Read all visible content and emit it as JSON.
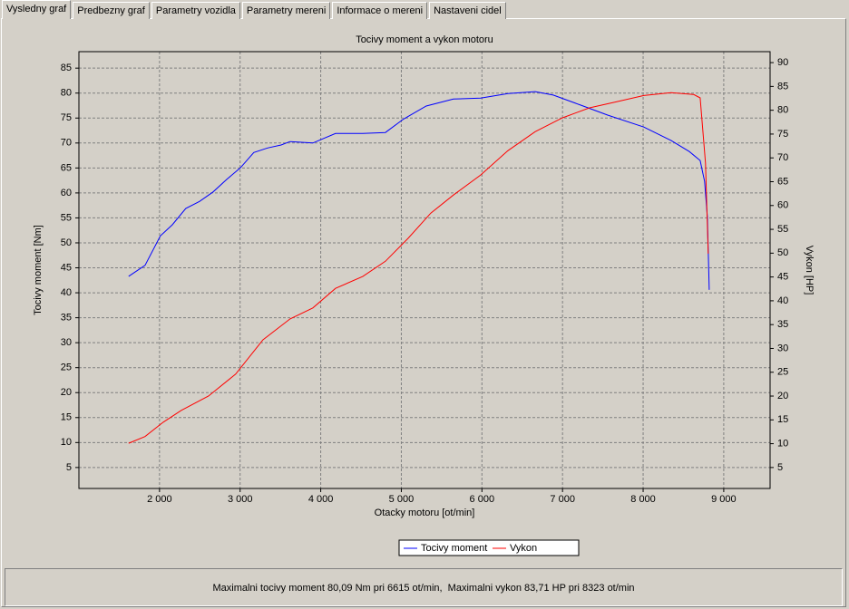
{
  "tabs": [
    "Vysledny graf",
    "Predbezny graf",
    "Parametry vozidla",
    "Parametry mereni",
    "Informace o mereni",
    "Nastaveni cidel"
  ],
  "chart_data": {
    "type": "line",
    "title": "Tocivy moment a vykon motoru",
    "x_label": "Otacky motoru [ot/min]",
    "y_label": "Tocivy moment [Nm]",
    "y2_label": "Vykon [HP]",
    "xlim": [
      1000,
      9575
    ],
    "ylim": [
      0.8,
      88.3
    ],
    "y2lim": [
      0.6,
      92.3
    ],
    "xticks": [
      {
        "value": 2000,
        "label": "2 000"
      },
      {
        "value": 3000,
        "label": "3 000"
      },
      {
        "value": 4000,
        "label": "4 000"
      },
      {
        "value": 5000,
        "label": "5 000"
      },
      {
        "value": 6000,
        "label": "6 000"
      },
      {
        "value": 7000,
        "label": "7 000"
      },
      {
        "value": 8000,
        "label": "8 000"
      },
      {
        "value": 9000,
        "label": "9 000"
      }
    ],
    "yticks": [
      5,
      10,
      15,
      20,
      25,
      30,
      35,
      40,
      45,
      50,
      55,
      60,
      65,
      70,
      75,
      80,
      85
    ],
    "y2ticks": [
      5,
      10,
      15,
      20,
      25,
      30,
      35,
      40,
      45,
      50,
      55,
      60,
      65,
      70,
      75,
      80,
      85,
      90
    ],
    "grid": true,
    "legend": "bottom",
    "series": [
      {
        "name": "Tocivy moment",
        "color": "#0000ff",
        "x": [
          1617,
          1820,
          2011,
          2158,
          2326,
          2495,
          2664,
          2833,
          3002,
          3170,
          3339,
          3508,
          3620,
          3902,
          4183,
          4521,
          4802,
          5027,
          5309,
          5646,
          5984,
          6322,
          6660,
          6884,
          7222,
          7559,
          8009,
          8347,
          8572,
          8707,
          8763,
          8797,
          8820
        ],
        "values": [
          43.3,
          45.5,
          51.4,
          53.6,
          56.9,
          58.3,
          60.2,
          62.7,
          65.0,
          68.1,
          69.0,
          69.6,
          70.3,
          70.0,
          71.9,
          71.9,
          72.1,
          74.8,
          77.4,
          78.8,
          79.0,
          79.9,
          80.3,
          79.6,
          77.6,
          75.6,
          73.2,
          70.5,
          68.3,
          66.5,
          62.3,
          55.1,
          40.6
        ]
      },
      {
        "name": "Vykon",
        "color": "#ff0000",
        "axis": "y2",
        "x": [
          1617,
          1820,
          2045,
          2270,
          2608,
          2945,
          3283,
          3620,
          3902,
          4183,
          4521,
          4802,
          5084,
          5365,
          5646,
          5984,
          6322,
          6660,
          6997,
          7335,
          7672,
          8009,
          8347,
          8628,
          8707,
          8774,
          8808
        ],
        "values": [
          10.1,
          11.5,
          14.5,
          17.0,
          20.0,
          24.6,
          31.8,
          36.2,
          38.5,
          42.6,
          45.1,
          48.3,
          53.1,
          58.4,
          62.2,
          66.4,
          71.5,
          75.5,
          78.4,
          80.5,
          81.8,
          83.1,
          83.7,
          83.3,
          82.6,
          68.9,
          49.9
        ]
      }
    ]
  },
  "status": "Maximalni tocivy moment 80,09 Nm pri 6615 ot/min,  Maximalni vykon 83,71 HP pri 8323 ot/min"
}
